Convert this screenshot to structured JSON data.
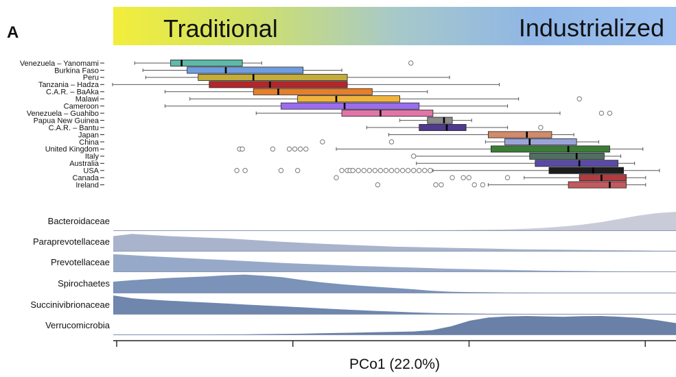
{
  "panel_letter": "A",
  "banner": {
    "left_label": "Traditional",
    "right_label": "Industrialized",
    "gradient": [
      "#f2ee3a",
      "#cfe06a",
      "#a7c9c9",
      "#8fb6e6",
      "#9cc0f0"
    ]
  },
  "colors": {
    "density_fill": [
      "#c9ccd8",
      "#a9b4cc",
      "#97a9c9",
      "#7b92b9",
      "#6f86ad",
      "#6a80a7"
    ],
    "whisker": "#555555",
    "outlier": "#777777"
  },
  "chart_data": {
    "type": "box",
    "x_range": [
      0,
      100
    ],
    "xlabel": "PCo1 (22.0%)",
    "groups": [
      {
        "label": "Venezuela – Yanomami",
        "color": "#5fb8a8",
        "whisker_low": 3.5,
        "q1": 10,
        "median": 12,
        "q3": 23,
        "whisker_high": 26.5,
        "outliers": [
          53.5
        ]
      },
      {
        "label": "Burkina Faso",
        "color": "#6f9ee0",
        "whisker_low": 5,
        "q1": 13,
        "median": 20,
        "q3": 34,
        "whisker_high": 41,
        "outliers": []
      },
      {
        "label": "Peru",
        "color": "#c4ad3b",
        "whisker_low": 5.5,
        "q1": 15,
        "median": 25,
        "q3": 42,
        "whisker_high": 60.5,
        "outliers": []
      },
      {
        "label": "Tanzania – Hadza",
        "color": "#b3262a",
        "whisker_low": -0.5,
        "q1": 17,
        "median": 28,
        "q3": 42,
        "whisker_high": 69.5,
        "outliers": []
      },
      {
        "label": "C.A.R. – BaAka",
        "color": "#e77f2a",
        "whisker_low": 9,
        "q1": 25,
        "median": 29.5,
        "q3": 46.5,
        "whisker_high": 56.5,
        "outliers": []
      },
      {
        "label": "Malawi",
        "color": "#f0b43c",
        "whisker_low": 13.5,
        "q1": 33,
        "median": 40,
        "q3": 51.5,
        "whisker_high": 73,
        "outliers": [
          84
        ]
      },
      {
        "label": "Cameroon",
        "color": "#9b6cf0",
        "whisker_low": 9,
        "q1": 30,
        "median": 41.5,
        "q3": 55,
        "whisker_high": 71,
        "outliers": []
      },
      {
        "label": "Venezuela – Guahibo",
        "color": "#e275a8",
        "whisker_low": 25.5,
        "q1": 41,
        "median": 48,
        "q3": 57.5,
        "whisker_high": 80.5,
        "outliers": [
          88,
          89.5
        ]
      },
      {
        "label": "Papua New Guinea",
        "color": "#8b8b8b",
        "whisker_low": 51.5,
        "q1": 56.5,
        "median": 59.5,
        "q3": 61,
        "whisker_high": 64.5,
        "outliers": []
      },
      {
        "label": "C.A.R. – Bantu",
        "color": "#4f3a8f",
        "whisker_low": 45.5,
        "q1": 55,
        "median": 60,
        "q3": 63.5,
        "whisker_high": 71,
        "outliers": [
          77
        ]
      },
      {
        "label": "Japan",
        "color": "#d28a6a",
        "whisker_low": 49.5,
        "q1": 67.5,
        "median": 74.5,
        "q3": 79,
        "whisker_high": 83,
        "outliers": []
      },
      {
        "label": "China",
        "color": "#9aa4d8",
        "whisker_low": 67,
        "q1": 70.5,
        "median": 75,
        "q3": 83.5,
        "whisker_high": 87.5,
        "outliers": [
          37.5,
          50
        ]
      },
      {
        "label": "United Kingdom",
        "color": "#3b7d36",
        "whisker_low": 40,
        "q1": 68,
        "median": 82,
        "q3": 89.5,
        "whisker_high": 95.5,
        "outliers": [
          22.5,
          23,
          28.5,
          31.5,
          32.5,
          33.5,
          34.5
        ]
      },
      {
        "label": "Italy",
        "color": "#4f6e64",
        "whisker_low": 54,
        "q1": 75,
        "median": 83.5,
        "q3": 88.5,
        "whisker_high": 91.5,
        "outliers": [
          54
        ]
      },
      {
        "label": "Australia",
        "color": "#5a4aa8",
        "whisker_low": 54.5,
        "q1": 76,
        "median": 84,
        "q3": 91,
        "whisker_high": 94,
        "outliers": []
      },
      {
        "label": "USA",
        "color": "#1d1d1d",
        "whisker_low": 57.5,
        "q1": 78.5,
        "median": 86.5,
        "q3": 92,
        "whisker_high": 98.5,
        "outliers": [
          22,
          23.5,
          30,
          33,
          41,
          42,
          42.5,
          43,
          44,
          45,
          46,
          47,
          48,
          49,
          50,
          51,
          52,
          53,
          54,
          55,
          56,
          57
        ]
      },
      {
        "label": "Canada",
        "color": "#b33a3f",
        "whisker_low": 74,
        "q1": 84,
        "median": 88,
        "q3": 92.5,
        "whisker_high": 96,
        "outliers": [
          40,
          61,
          63,
          64,
          71
        ]
      },
      {
        "label": "Ireland",
        "color": "#c25a5e",
        "whisker_low": 67.5,
        "q1": 82,
        "median": 89.5,
        "q3": 92.5,
        "whisker_high": 96,
        "outliers": [
          47.5,
          58,
          59,
          65,
          66.5
        ]
      }
    ],
    "density_tracks": [
      {
        "name": "Bacteroidaceae",
        "values": [
          0,
          0,
          0,
          0,
          0,
          0,
          0,
          0,
          0,
          0,
          0,
          0,
          0.01,
          0.01,
          0.02,
          0.02,
          0.02,
          0.03,
          0.03,
          0.04,
          0.05,
          0.07,
          0.1,
          0.15,
          0.22,
          0.32,
          0.45,
          0.62,
          0.8,
          0.93,
          1.0
        ]
      },
      {
        "name": "Paraprevotellaceae",
        "values": [
          0.8,
          0.92,
          0.86,
          0.8,
          0.76,
          0.72,
          0.68,
          0.62,
          0.56,
          0.5,
          0.45,
          0.4,
          0.36,
          0.32,
          0.28,
          0.24,
          0.22,
          0.2,
          0.18,
          0.16,
          0.14,
          0.12,
          0.1,
          0.09,
          0.08,
          0.07,
          0.06,
          0.05,
          0.04,
          0.03,
          0.03
        ]
      },
      {
        "name": "Prevotellaceae",
        "values": [
          0.93,
          0.88,
          0.82,
          0.77,
          0.72,
          0.67,
          0.62,
          0.57,
          0.52,
          0.47,
          0.43,
          0.39,
          0.35,
          0.31,
          0.28,
          0.25,
          0.22,
          0.19,
          0.16,
          0.14,
          0.12,
          0.1,
          0.08,
          0.06,
          0.05,
          0.04,
          0.03,
          0.02,
          0.02,
          0.01,
          0.01
        ]
      },
      {
        "name": "Spirochaetes",
        "values": [
          0.6,
          0.68,
          0.74,
          0.8,
          0.84,
          0.88,
          0.94,
          0.98,
          0.92,
          0.84,
          0.7,
          0.58,
          0.48,
          0.4,
          0.33,
          0.27,
          0.2,
          0.12,
          0.07,
          0.05,
          0.04,
          0.03,
          0.03,
          0.02,
          0.02,
          0.02,
          0.02,
          0.02,
          0.02,
          0.02,
          0.02
        ]
      },
      {
        "name": "Succinivibrionaceae",
        "values": [
          1.0,
          0.85,
          0.78,
          0.72,
          0.67,
          0.62,
          0.57,
          0.52,
          0.47,
          0.42,
          0.37,
          0.32,
          0.27,
          0.22,
          0.18,
          0.14,
          0.1,
          0.07,
          0.05,
          0.04,
          0.03,
          0.03,
          0.02,
          0.02,
          0.02,
          0.02,
          0.02,
          0.02,
          0.02,
          0.02,
          0.02
        ]
      },
      {
        "name": "Verrucomicrobia",
        "values": [
          0.02,
          0.02,
          0.02,
          0.02,
          0.02,
          0.02,
          0.03,
          0.03,
          0.04,
          0.05,
          0.06,
          0.08,
          0.1,
          0.12,
          0.14,
          0.16,
          0.18,
          0.25,
          0.45,
          0.75,
          0.92,
          0.98,
          1.0,
          0.98,
          0.96,
          0.99,
          1.0,
          0.96,
          0.9,
          0.78,
          0.62
        ]
      }
    ]
  }
}
